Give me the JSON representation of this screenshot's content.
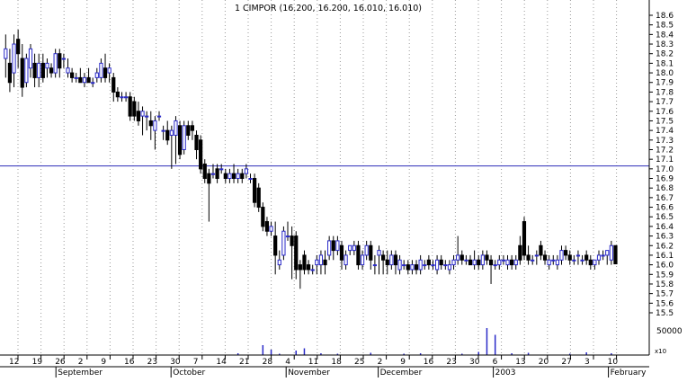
{
  "chart_data": {
    "type": "candlestick",
    "title": "1 CIMPOR (16.200, 16.200, 16.010, 16.010)",
    "y_axis": {
      "min": 15.5,
      "max": 18.6,
      "ticks": [
        18.6,
        18.5,
        18.4,
        18.3,
        18.2,
        18.1,
        18.0,
        17.9,
        17.8,
        17.7,
        17.6,
        17.5,
        17.4,
        17.3,
        17.2,
        17.1,
        17.0,
        16.9,
        16.8,
        16.7,
        16.6,
        16.5,
        16.4,
        16.3,
        16.2,
        16.1,
        16.0,
        15.9,
        15.8,
        15.7,
        15.6,
        15.5
      ],
      "tick_labels": [
        "18.6",
        "18.5",
        "18.4",
        "18.3",
        "18.2",
        "18.1",
        "18.0",
        "17.9",
        "17.8",
        "17.7",
        "17.6",
        "17.5",
        "17.4",
        "17.3",
        "17.2",
        "17.1",
        "17.0",
        "16.9",
        "16.8",
        "16.7",
        "16.6",
        "16.5",
        "16.4",
        "16.3",
        "16.2",
        "16.1",
        "16.0",
        "15.9",
        "15.8",
        "15.7",
        "15.6",
        "15.5"
      ]
    },
    "volume_axis": {
      "max": 80000,
      "tick_label": "50000",
      "multiplier_label": "x10"
    },
    "reference_line": {
      "value": 17.03,
      "color": "#2b2bb8"
    },
    "x_axis": {
      "day_ticks": [
        "12",
        "19",
        "26",
        "2",
        "9",
        "16",
        "23",
        "30",
        "7",
        "14",
        "21",
        "28",
        "4",
        "11",
        "18",
        "25",
        "2",
        "9",
        "16",
        "23",
        "30",
        "6",
        "13",
        "20",
        "27",
        "3",
        "10"
      ],
      "month_labels": [
        "September",
        "October",
        "November",
        "December",
        "2003",
        "February"
      ]
    },
    "colors": {
      "up": "#2a2ac8",
      "down": "#000000",
      "wick": "#000000",
      "volume": "#2a2ac8"
    },
    "series": [
      {
        "d": 0,
        "o": 18.15,
        "h": 18.4,
        "l": 17.95,
        "c": 18.25
      },
      {
        "d": 1,
        "o": 18.1,
        "h": 18.25,
        "l": 17.8,
        "c": 17.9
      },
      {
        "d": 2,
        "o": 18.0,
        "h": 18.4,
        "l": 17.85,
        "c": 18.3
      },
      {
        "d": 3,
        "o": 18.35,
        "h": 18.45,
        "l": 18.05,
        "c": 18.2
      },
      {
        "d": 4,
        "o": 18.15,
        "h": 18.3,
        "l": 17.75,
        "c": 17.85
      },
      {
        "d": 5,
        "o": 17.9,
        "h": 18.2,
        "l": 17.85,
        "c": 18.15
      },
      {
        "d": 6,
        "o": 18.05,
        "h": 18.3,
        "l": 17.95,
        "c": 18.25
      },
      {
        "d": 7,
        "o": 18.1,
        "h": 18.2,
        "l": 17.85,
        "c": 17.95
      },
      {
        "d": 8,
        "o": 17.95,
        "h": 18.2,
        "l": 17.85,
        "c": 18.1
      },
      {
        "d": 9,
        "o": 18.1,
        "h": 18.2,
        "l": 17.9,
        "c": 17.95
      },
      {
        "d": 10,
        "o": 18.05,
        "h": 18.15,
        "l": 17.95,
        "c": 18.1
      },
      {
        "d": 11,
        "o": 18.05,
        "h": 18.1,
        "l": 17.95,
        "c": 18.0
      },
      {
        "d": 12,
        "o": 18.0,
        "h": 18.25,
        "l": 17.95,
        "c": 18.2
      },
      {
        "d": 13,
        "o": 18.2,
        "h": 18.25,
        "l": 17.95,
        "c": 18.05
      },
      {
        "d": 14,
        "o": 18.15,
        "h": 18.2,
        "l": 18.05,
        "c": 18.15
      },
      {
        "d": 15,
        "o": 18.0,
        "h": 18.15,
        "l": 17.95,
        "c": 18.05
      },
      {
        "d": 16,
        "o": 18.0,
        "h": 18.05,
        "l": 17.9,
        "c": 17.95
      },
      {
        "d": 17,
        "o": 17.95,
        "h": 18.0,
        "l": 17.9,
        "c": 17.95
      },
      {
        "d": 18,
        "o": 17.95,
        "h": 18.05,
        "l": 17.9,
        "c": 17.9
      },
      {
        "d": 19,
        "o": 17.9,
        "h": 18.0,
        "l": 17.85,
        "c": 17.95
      },
      {
        "d": 20,
        "o": 17.95,
        "h": 18.05,
        "l": 17.9,
        "c": 17.9
      },
      {
        "d": 21,
        "o": 17.9,
        "h": 17.95,
        "l": 17.85,
        "c": 17.9
      },
      {
        "d": 22,
        "o": 17.95,
        "h": 18.05,
        "l": 17.9,
        "c": 18.0
      },
      {
        "d": 23,
        "o": 17.95,
        "h": 18.15,
        "l": 17.9,
        "c": 18.1
      },
      {
        "d": 24,
        "o": 18.05,
        "h": 18.2,
        "l": 17.9,
        "c": 17.95
      },
      {
        "d": 25,
        "o": 18.0,
        "h": 18.1,
        "l": 17.9,
        "c": 18.05
      },
      {
        "d": 26,
        "o": 17.95,
        "h": 18.0,
        "l": 17.7,
        "c": 17.8
      },
      {
        "d": 27,
        "o": 17.8,
        "h": 17.85,
        "l": 17.7,
        "c": 17.75
      },
      {
        "d": 28,
        "o": 17.75,
        "h": 17.8,
        "l": 17.7,
        "c": 17.75
      },
      {
        "d": 29,
        "o": 17.75,
        "h": 17.8,
        "l": 17.7,
        "c": 17.75
      },
      {
        "d": 30,
        "o": 17.75,
        "h": 17.8,
        "l": 17.5,
        "c": 17.55
      },
      {
        "d": 31,
        "o": 17.7,
        "h": 17.75,
        "l": 17.5,
        "c": 17.55
      },
      {
        "d": 32,
        "o": 17.6,
        "h": 17.7,
        "l": 17.45,
        "c": 17.5
      },
      {
        "d": 33,
        "o": 17.55,
        "h": 17.65,
        "l": 17.35,
        "c": 17.6
      },
      {
        "d": 34,
        "o": 17.55,
        "h": 17.6,
        "l": 17.4,
        "c": 17.55
      },
      {
        "d": 35,
        "o": 17.5,
        "h": 17.6,
        "l": 17.3,
        "c": 17.45
      },
      {
        "d": 36,
        "o": 17.4,
        "h": 17.55,
        "l": 17.2,
        "c": 17.5
      },
      {
        "d": 37,
        "o": 17.55,
        "h": 17.6,
        "l": 17.5,
        "c": 17.55
      },
      {
        "d": 38,
        "o": 17.4,
        "h": 17.45,
        "l": 17.3,
        "c": 17.4
      },
      {
        "d": 39,
        "o": 17.4,
        "h": 17.5,
        "l": 17.25,
        "c": 17.3
      },
      {
        "d": 40,
        "o": 17.35,
        "h": 17.45,
        "l": 17.0,
        "c": 17.4
      },
      {
        "d": 41,
        "o": 17.35,
        "h": 17.55,
        "l": 17.05,
        "c": 17.5
      },
      {
        "d": 42,
        "o": 17.45,
        "h": 17.5,
        "l": 17.1,
        "c": 17.15
      },
      {
        "d": 43,
        "o": 17.2,
        "h": 17.5,
        "l": 17.15,
        "c": 17.45
      },
      {
        "d": 44,
        "o": 17.45,
        "h": 17.5,
        "l": 17.3,
        "c": 17.35
      },
      {
        "d": 45,
        "o": 17.45,
        "h": 17.5,
        "l": 17.3,
        "c": 17.4
      },
      {
        "d": 46,
        "o": 17.35,
        "h": 17.4,
        "l": 17.1,
        "c": 17.2
      },
      {
        "d": 47,
        "o": 17.3,
        "h": 17.35,
        "l": 16.95,
        "c": 17.0
      },
      {
        "d": 48,
        "o": 17.05,
        "h": 17.1,
        "l": 16.85,
        "c": 16.9
      },
      {
        "d": 49,
        "o": 16.95,
        "h": 17.0,
        "l": 16.45,
        "c": 16.85
      },
      {
        "d": 50,
        "o": 16.95,
        "h": 17.05,
        "l": 16.9,
        "c": 16.95
      },
      {
        "d": 51,
        "o": 17.0,
        "h": 17.05,
        "l": 16.85,
        "c": 16.9
      },
      {
        "d": 52,
        "o": 17.0,
        "h": 17.05,
        "l": 16.95,
        "c": 17.0
      },
      {
        "d": 53,
        "o": 16.95,
        "h": 17.0,
        "l": 16.85,
        "c": 16.9
      },
      {
        "d": 54,
        "o": 16.9,
        "h": 17.0,
        "l": 16.85,
        "c": 16.95
      },
      {
        "d": 55,
        "o": 16.95,
        "h": 17.05,
        "l": 16.85,
        "c": 16.9
      },
      {
        "d": 56,
        "o": 16.9,
        "h": 17.0,
        "l": 16.85,
        "c": 16.95
      },
      {
        "d": 57,
        "o": 16.95,
        "h": 17.0,
        "l": 16.85,
        "c": 16.9
      },
      {
        "d": 58,
        "o": 16.95,
        "h": 17.05,
        "l": 16.9,
        "c": 17.0
      },
      {
        "d": 59,
        "o": 16.9,
        "h": 16.95,
        "l": 16.85,
        "c": 16.9
      },
      {
        "d": 60,
        "o": 16.9,
        "h": 16.95,
        "l": 16.6,
        "c": 16.65
      },
      {
        "d": 61,
        "o": 16.8,
        "h": 16.85,
        "l": 16.55,
        "c": 16.6
      },
      {
        "d": 62,
        "o": 16.6,
        "h": 16.65,
        "l": 16.35,
        "c": 16.4
      },
      {
        "d": 63,
        "o": 16.45,
        "h": 16.5,
        "l": 16.3,
        "c": 16.35
      },
      {
        "d": 64,
        "o": 16.35,
        "h": 16.45,
        "l": 16.3,
        "c": 16.4
      },
      {
        "d": 65,
        "o": 16.3,
        "h": 16.45,
        "l": 15.9,
        "c": 16.1
      },
      {
        "d": 66,
        "o": 16.0,
        "h": 16.15,
        "l": 15.95,
        "c": 16.05
      },
      {
        "d": 67,
        "o": 16.1,
        "h": 16.4,
        "l": 16.05,
        "c": 16.35
      },
      {
        "d": 68,
        "o": 16.3,
        "h": 16.45,
        "l": 16.25,
        "c": 16.3
      },
      {
        "d": 69,
        "o": 16.3,
        "h": 16.4,
        "l": 15.85,
        "c": 16.2
      },
      {
        "d": 70,
        "o": 16.3,
        "h": 16.35,
        "l": 15.85,
        "c": 15.95
      },
      {
        "d": 71,
        "o": 16.0,
        "h": 16.05,
        "l": 15.75,
        "c": 15.95
      },
      {
        "d": 72,
        "o": 16.1,
        "h": 16.15,
        "l": 15.9,
        "c": 15.95
      },
      {
        "d": 73,
        "o": 16.0,
        "h": 16.05,
        "l": 15.9,
        "c": 15.95
      },
      {
        "d": 74,
        "o": 15.95,
        "h": 16.0,
        "l": 15.9,
        "c": 15.95
      },
      {
        "d": 75,
        "o": 16.0,
        "h": 16.1,
        "l": 15.9,
        "c": 16.05
      },
      {
        "d": 76,
        "o": 16.0,
        "h": 16.15,
        "l": 15.9,
        "c": 16.1
      },
      {
        "d": 77,
        "o": 16.05,
        "h": 16.15,
        "l": 15.9,
        "c": 16.0
      },
      {
        "d": 78,
        "o": 16.1,
        "h": 16.3,
        "l": 16.05,
        "c": 16.25
      },
      {
        "d": 79,
        "o": 16.25,
        "h": 16.3,
        "l": 16.05,
        "c": 16.15
      },
      {
        "d": 80,
        "o": 16.15,
        "h": 16.3,
        "l": 16.1,
        "c": 16.25
      },
      {
        "d": 81,
        "o": 16.2,
        "h": 16.25,
        "l": 15.95,
        "c": 16.05
      },
      {
        "d": 82,
        "o": 16.0,
        "h": 16.15,
        "l": 15.95,
        "c": 16.1
      },
      {
        "d": 83,
        "o": 16.15,
        "h": 16.2,
        "l": 16.1,
        "c": 16.2
      },
      {
        "d": 84,
        "o": 16.15,
        "h": 16.25,
        "l": 16.1,
        "c": 16.2
      },
      {
        "d": 85,
        "o": 16.2,
        "h": 16.25,
        "l": 15.95,
        "c": 16.0
      },
      {
        "d": 86,
        "o": 16.0,
        "h": 16.15,
        "l": 15.95,
        "c": 16.1
      },
      {
        "d": 87,
        "o": 16.1,
        "h": 16.25,
        "l": 16.05,
        "c": 16.2
      },
      {
        "d": 88,
        "o": 16.2,
        "h": 16.25,
        "l": 15.95,
        "c": 16.05
      },
      {
        "d": 89,
        "o": 16.0,
        "h": 16.1,
        "l": 15.9,
        "c": 16.0
      },
      {
        "d": 90,
        "o": 16.1,
        "h": 16.2,
        "l": 15.9,
        "c": 16.15
      },
      {
        "d": 91,
        "o": 16.1,
        "h": 16.15,
        "l": 15.9,
        "c": 16.05
      },
      {
        "d": 92,
        "o": 16.05,
        "h": 16.15,
        "l": 15.9,
        "c": 16.0
      },
      {
        "d": 93,
        "o": 16.0,
        "h": 16.15,
        "l": 15.95,
        "c": 16.1
      },
      {
        "d": 94,
        "o": 16.1,
        "h": 16.15,
        "l": 15.9,
        "c": 16.0
      },
      {
        "d": 95,
        "o": 15.95,
        "h": 16.1,
        "l": 15.9,
        "c": 16.05
      },
      {
        "d": 96,
        "o": 16.0,
        "h": 16.05,
        "l": 15.95,
        "c": 16.0
      },
      {
        "d": 97,
        "o": 16.0,
        "h": 16.05,
        "l": 15.9,
        "c": 15.95
      },
      {
        "d": 98,
        "o": 15.95,
        "h": 16.05,
        "l": 15.9,
        "c": 16.0
      },
      {
        "d": 99,
        "o": 16.0,
        "h": 16.05,
        "l": 15.9,
        "c": 15.95
      },
      {
        "d": 100,
        "o": 15.95,
        "h": 16.1,
        "l": 15.9,
        "c": 16.05
      },
      {
        "d": 101,
        "o": 16.0,
        "h": 16.05,
        "l": 15.95,
        "c": 16.0
      },
      {
        "d": 102,
        "o": 16.05,
        "h": 16.1,
        "l": 15.95,
        "c": 16.0
      },
      {
        "d": 103,
        "o": 16.0,
        "h": 16.05,
        "l": 15.95,
        "c": 16.0
      },
      {
        "d": 104,
        "o": 15.95,
        "h": 16.1,
        "l": 15.9,
        "c": 16.05
      },
      {
        "d": 105,
        "o": 16.05,
        "h": 16.1,
        "l": 15.95,
        "c": 16.0
      },
      {
        "d": 106,
        "o": 16.0,
        "h": 16.05,
        "l": 15.95,
        "c": 16.0
      },
      {
        "d": 107,
        "o": 15.95,
        "h": 16.05,
        "l": 15.9,
        "c": 16.0
      },
      {
        "d": 108,
        "o": 16.0,
        "h": 16.1,
        "l": 15.95,
        "c": 16.05
      },
      {
        "d": 109,
        "o": 16.05,
        "h": 16.3,
        "l": 16.0,
        "c": 16.1
      },
      {
        "d": 110,
        "o": 16.1,
        "h": 16.15,
        "l": 16.0,
        "c": 16.05
      },
      {
        "d": 111,
        "o": 16.05,
        "h": 16.1,
        "l": 16.0,
        "c": 16.05
      },
      {
        "d": 112,
        "o": 16.05,
        "h": 16.1,
        "l": 16.0,
        "c": 16.0
      },
      {
        "d": 113,
        "o": 16.0,
        "h": 16.15,
        "l": 15.95,
        "c": 16.05
      },
      {
        "d": 114,
        "o": 16.05,
        "h": 16.1,
        "l": 15.95,
        "c": 16.0
      },
      {
        "d": 115,
        "o": 16.0,
        "h": 16.15,
        "l": 15.95,
        "c": 16.1
      },
      {
        "d": 116,
        "o": 16.1,
        "h": 16.15,
        "l": 16.0,
        "c": 16.05
      },
      {
        "d": 117,
        "o": 16.05,
        "h": 16.1,
        "l": 15.8,
        "c": 16.0
      },
      {
        "d": 118,
        "o": 16.0,
        "h": 16.05,
        "l": 15.95,
        "c": 16.0
      },
      {
        "d": 119,
        "o": 16.0,
        "h": 16.1,
        "l": 15.95,
        "c": 16.05
      },
      {
        "d": 120,
        "o": 16.05,
        "h": 16.1,
        "l": 16.0,
        "c": 16.05
      },
      {
        "d": 121,
        "o": 16.0,
        "h": 16.1,
        "l": 15.95,
        "c": 16.05
      },
      {
        "d": 122,
        "o": 16.05,
        "h": 16.1,
        "l": 15.95,
        "c": 16.0
      },
      {
        "d": 123,
        "o": 16.0,
        "h": 16.1,
        "l": 15.95,
        "c": 16.05
      },
      {
        "d": 124,
        "o": 16.2,
        "h": 16.3,
        "l": 16.0,
        "c": 16.05
      },
      {
        "d": 125,
        "o": 16.45,
        "h": 16.5,
        "l": 16.05,
        "c": 16.1
      },
      {
        "d": 126,
        "o": 16.1,
        "h": 16.2,
        "l": 16.0,
        "c": 16.05
      },
      {
        "d": 127,
        "o": 16.05,
        "h": 16.1,
        "l": 16.0,
        "c": 16.05
      },
      {
        "d": 128,
        "o": 16.1,
        "h": 16.15,
        "l": 16.0,
        "c": 16.1
      },
      {
        "d": 129,
        "o": 16.2,
        "h": 16.25,
        "l": 16.05,
        "c": 16.1
      },
      {
        "d": 130,
        "o": 16.1,
        "h": 16.15,
        "l": 16.0,
        "c": 16.05
      },
      {
        "d": 131,
        "o": 16.0,
        "h": 16.1,
        "l": 15.95,
        "c": 16.05
      },
      {
        "d": 132,
        "o": 16.05,
        "h": 16.1,
        "l": 16.0,
        "c": 16.05
      },
      {
        "d": 133,
        "o": 16.0,
        "h": 16.1,
        "l": 15.95,
        "c": 16.05
      },
      {
        "d": 134,
        "o": 16.05,
        "h": 16.2,
        "l": 16.0,
        "c": 16.15
      },
      {
        "d": 135,
        "o": 16.15,
        "h": 16.2,
        "l": 16.05,
        "c": 16.1
      },
      {
        "d": 136,
        "o": 16.1,
        "h": 16.15,
        "l": 16.0,
        "c": 16.05
      },
      {
        "d": 137,
        "o": 16.05,
        "h": 16.1,
        "l": 16.0,
        "c": 16.05
      },
      {
        "d": 138,
        "o": 16.1,
        "h": 16.15,
        "l": 16.0,
        "c": 16.1
      },
      {
        "d": 139,
        "o": 16.05,
        "h": 16.1,
        "l": 16.0,
        "c": 16.05
      },
      {
        "d": 140,
        "o": 16.1,
        "h": 16.15,
        "l": 16.0,
        "c": 16.05
      },
      {
        "d": 141,
        "o": 16.05,
        "h": 16.1,
        "l": 15.95,
        "c": 16.0
      },
      {
        "d": 142,
        "o": 16.0,
        "h": 16.05,
        "l": 15.95,
        "c": 16.05
      },
      {
        "d": 143,
        "o": 16.05,
        "h": 16.15,
        "l": 16.0,
        "c": 16.1
      },
      {
        "d": 144,
        "o": 16.1,
        "h": 16.15,
        "l": 16.05,
        "c": 16.1
      },
      {
        "d": 145,
        "o": 16.1,
        "h": 16.15,
        "l": 16.0,
        "c": 16.15
      },
      {
        "d": 146,
        "o": 16.05,
        "h": 16.25,
        "l": 16.0,
        "c": 16.2
      },
      {
        "d": 147,
        "o": 16.2,
        "h": 16.2,
        "l": 16.01,
        "c": 16.01
      }
    ],
    "volume_series": [
      {
        "d": 56,
        "v": 4000
      },
      {
        "d": 62,
        "v": 22000
      },
      {
        "d": 64,
        "v": 12000
      },
      {
        "d": 66,
        "v": 3000
      },
      {
        "d": 70,
        "v": 10000
      },
      {
        "d": 72,
        "v": 15000
      },
      {
        "d": 76,
        "v": 4000
      },
      {
        "d": 80,
        "v": 3000
      },
      {
        "d": 88,
        "v": 5000
      },
      {
        "d": 96,
        "v": 3000
      },
      {
        "d": 100,
        "v": 4000
      },
      {
        "d": 110,
        "v": 3000
      },
      {
        "d": 114,
        "v": 7000
      },
      {
        "d": 116,
        "v": 60000
      },
      {
        "d": 118,
        "v": 45000
      },
      {
        "d": 122,
        "v": 4000
      },
      {
        "d": 126,
        "v": 5000
      },
      {
        "d": 136,
        "v": 3000
      },
      {
        "d": 140,
        "v": 6000
      },
      {
        "d": 146,
        "v": 4000
      }
    ]
  }
}
